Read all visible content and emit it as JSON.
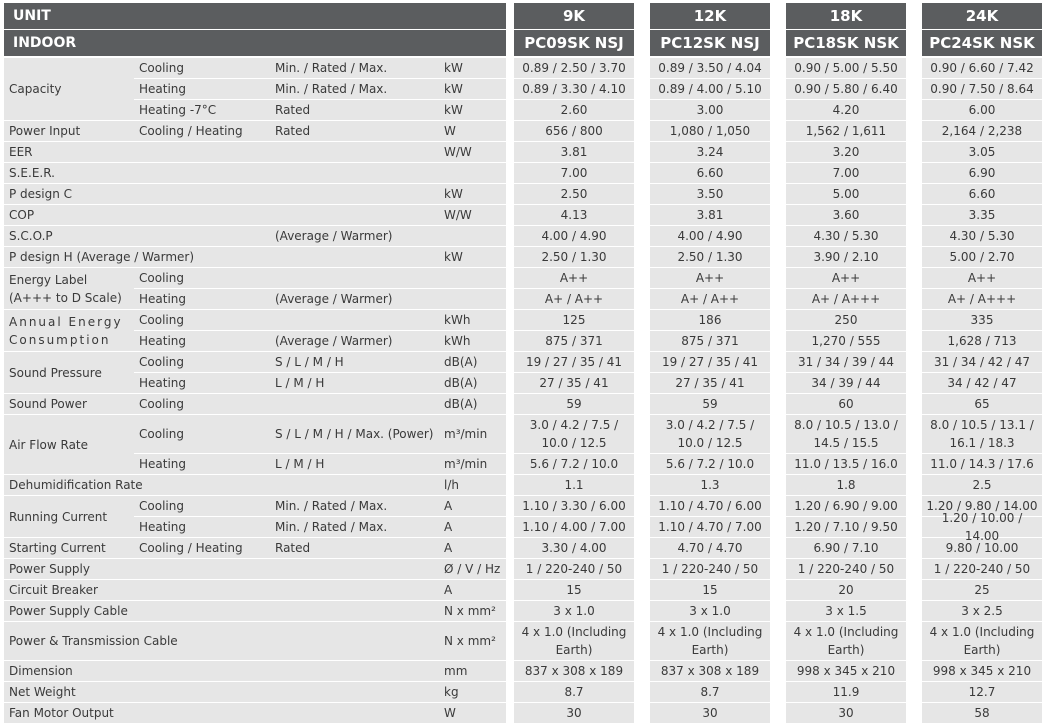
{
  "header": {
    "unit_label": "UNIT",
    "indoor_label": "INDOOR",
    "capacities": [
      "9K",
      "12K",
      "18K",
      "24K"
    ],
    "models": [
      "PC09SK NSJ",
      "PC12SK NSJ",
      "PC18SK NSK",
      "PC24SK NSK"
    ]
  },
  "rows": [
    {
      "param": "",
      "mode": "Cooling",
      "cond": "Min. / Rated / Max.",
      "unit": "kW",
      "values": [
        "0.89 / 2.50 / 3.70",
        "0.89 / 3.50 / 4.04",
        "0.90 / 5.00 / 5.50",
        "0.90 / 6.60 / 7.42"
      ]
    },
    {
      "param": "",
      "mode": "Heating",
      "cond": "Min. / Rated / Max.",
      "unit": "kW",
      "values": [
        "0.89 / 3.30 / 4.10",
        "0.89 / 4.00 / 5.10",
        "0.90 / 5.80 / 6.40",
        "0.90 / 7.50 / 8.64"
      ]
    },
    {
      "param": "",
      "mode": "Heating -7°C",
      "cond": "Rated",
      "unit": "kW",
      "values": [
        "2.60",
        "3.00",
        "4.20",
        "6.00"
      ]
    },
    {
      "param": "Power Input",
      "mode": "Cooling / Heating",
      "cond": "Rated",
      "unit": "W",
      "values": [
        "656 / 800",
        "1,080 / 1,050",
        "1,562 / 1,611",
        "2,164 / 2,238"
      ]
    },
    {
      "param": "EER",
      "mode": "",
      "cond": "",
      "unit": "W/W",
      "values": [
        "3.81",
        "3.24",
        "3.20",
        "3.05"
      ]
    },
    {
      "param": "S.E.E.R.",
      "mode": "",
      "cond": "",
      "unit": "",
      "values": [
        "7.00",
        "6.60",
        "7.00",
        "6.90"
      ]
    },
    {
      "param": "P design C",
      "mode": "",
      "cond": "",
      "unit": "kW",
      "values": [
        "2.50",
        "3.50",
        "5.00",
        "6.60"
      ]
    },
    {
      "param": "COP",
      "mode": "",
      "cond": "",
      "unit": "W/W",
      "values": [
        "4.13",
        "3.81",
        "3.60",
        "3.35"
      ]
    },
    {
      "param": "S.C.O.P",
      "mode": "",
      "cond": "(Average / Warmer)",
      "unit": "",
      "values": [
        "4.00 / 4.90",
        "4.00 / 4.90",
        "4.30 / 5.30",
        "4.30 / 5.30"
      ]
    },
    {
      "param": "P design H (Average / Warmer)",
      "mode": "",
      "cond": "",
      "unit": "kW",
      "values": [
        "2.50 / 1.30",
        "2.50 / 1.30",
        "3.90 / 2.10",
        "5.00 / 2.70"
      ]
    },
    {
      "param": "",
      "mode": "Cooling",
      "cond": "",
      "unit": "",
      "values": [
        "A++",
        "A++",
        "A++",
        "A++"
      ]
    },
    {
      "param": "",
      "mode": "Heating",
      "cond": "(Average / Warmer)",
      "unit": "",
      "values": [
        "A+ / A++",
        "A+ / A++",
        "A+ / A+++",
        "A+ / A+++"
      ]
    },
    {
      "param": "",
      "mode": "Cooling",
      "cond": "",
      "unit": "kWh",
      "values": [
        "125",
        "186",
        "250",
        "335"
      ]
    },
    {
      "param": "",
      "mode": "Heating",
      "cond": "(Average / Warmer)",
      "unit": "kWh",
      "values": [
        "875 / 371",
        "875 / 371",
        "1,270 / 555",
        "1,628 / 713"
      ]
    },
    {
      "param": "",
      "mode": "Cooling",
      "cond": "S / L / M / H",
      "unit": "dB(A)",
      "values": [
        "19 / 27 / 35 / 41",
        "19 / 27 / 35 / 41",
        "31 / 34 / 39 / 44",
        "31 / 34 / 42 / 47"
      ]
    },
    {
      "param": "",
      "mode": "Heating",
      "cond": "L / M / H",
      "unit": "dB(A)",
      "values": [
        "27 / 35 / 41",
        "27 / 35 / 41",
        "34 / 39 / 44",
        "34 / 42 / 47"
      ]
    },
    {
      "param": "Sound Power",
      "mode": "Cooling",
      "cond": "",
      "unit": "dB(A)",
      "values": [
        "59",
        "59",
        "60",
        "65"
      ]
    },
    {
      "param": "",
      "mode": "Cooling",
      "cond": "S / L / M / H / Max. (Power)",
      "unit": "m³/min",
      "values": [
        "3.0 / 4.2 / 7.5 / 10.0 / 12.5",
        "3.0 / 4.2 / 7.5 / 10.0 / 12.5",
        "8.0 / 10.5 / 13.0 / 14.5 / 15.5",
        "8.0 / 10.5 / 13.1 / 16.1 / 18.3"
      ]
    },
    {
      "param": "",
      "mode": "Heating",
      "cond": "L / M / H",
      "unit": "m³/min",
      "values": [
        "5.6 / 7.2 / 10.0",
        "5.6 / 7.2 / 10.0",
        "11.0 / 13.5 / 16.0",
        "11.0 / 14.3 / 17.6"
      ]
    },
    {
      "param": "Dehumidification Rate",
      "mode": "",
      "cond": "",
      "unit": "l/h",
      "values": [
        "1.1",
        "1.3",
        "1.8",
        "2.5"
      ]
    },
    {
      "param": "",
      "mode": "Cooling",
      "cond": "Min. / Rated / Max.",
      "unit": "A",
      "values": [
        "1.10 / 3.30 / 6.00",
        "1.10 / 4.70 / 6.00",
        "1.20 / 6.90 / 9.00",
        "1.20 / 9.80 / 14.00"
      ]
    },
    {
      "param": "",
      "mode": "Heating",
      "cond": "Min. / Rated / Max.",
      "unit": "A",
      "values": [
        "1.10 / 4.00 / 7.00",
        "1.10 / 4.70 / 7.00",
        "1.20 / 7.10 / 9.50",
        "1.20 / 10.00 / 14.00"
      ]
    },
    {
      "param": "Starting Current",
      "mode": "Cooling / Heating",
      "cond": "Rated",
      "unit": "A",
      "values": [
        "3.30 / 4.00",
        "4.70 / 4.70",
        "6.90 / 7.10",
        "9.80 / 10.00"
      ]
    },
    {
      "param": "Power Supply",
      "mode": "",
      "cond": "",
      "unit": "Ø / V / Hz",
      "values": [
        "1 / 220-240 / 50",
        "1 / 220-240 / 50",
        "1 / 220-240 / 50",
        "1 / 220-240 / 50"
      ]
    },
    {
      "param": "Circuit Breaker",
      "mode": "",
      "cond": "",
      "unit": "A",
      "values": [
        "15",
        "15",
        "20",
        "25"
      ]
    },
    {
      "param": "Power Supply Cable",
      "mode": "",
      "cond": "",
      "unit": "N x mm²",
      "values": [
        "3 x 1.0",
        "3 x 1.0",
        "3 x 1.5",
        "3 x 2.5"
      ]
    },
    {
      "param": "Power & Transmission Cable",
      "mode": "",
      "cond": "",
      "unit": "N x mm²",
      "values": [
        "4 x 1.0 (Including Earth)",
        "4 x 1.0 (Including Earth)",
        "4 x 1.0 (Including Earth)",
        "4 x 1.0 (Including Earth)"
      ]
    },
    {
      "param": "Dimension",
      "mode": "",
      "cond": "",
      "unit": "mm",
      "values": [
        "837 x 308 x 189",
        "837 x 308 x 189",
        "998 x 345 x 210",
        "998 x 345 x 210"
      ]
    },
    {
      "param": "Net Weight",
      "mode": "",
      "cond": "",
      "unit": "kg",
      "values": [
        "8.7",
        "8.7",
        "11.9",
        "12.7"
      ]
    },
    {
      "param": "Fan Motor Output",
      "mode": "",
      "cond": "",
      "unit": "W",
      "values": [
        "30",
        "30",
        "30",
        "58"
      ]
    }
  ],
  "groups": [
    {
      "label": "Capacity",
      "start": 0,
      "span": 3
    },
    {
      "label": "Energy Label (A+++ to D Scale)",
      "start": 10,
      "span": 2
    },
    {
      "label": "Annual Energy Consumption",
      "start": 12,
      "span": 2
    },
    {
      "label": "Sound Pressure",
      "start": 14,
      "span": 2
    },
    {
      "label": "Air Flow Rate",
      "start": 17,
      "span": 2
    },
    {
      "label": "Running Current",
      "start": 20,
      "span": 2
    }
  ]
}
